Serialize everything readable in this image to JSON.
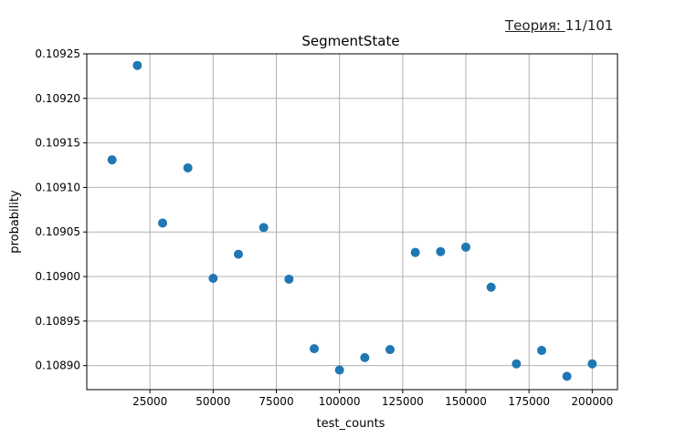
{
  "theory_link": {
    "label": "Теория: ",
    "value": "11/101"
  },
  "chart_data": {
    "type": "scatter",
    "title": "SegmentState",
    "xlabel": "test_counts",
    "ylabel": "probability",
    "xlim": [
      0,
      210000
    ],
    "ylim": [
      0.108873,
      0.10925
    ],
    "grid": true,
    "x_ticks": [
      25000,
      50000,
      75000,
      100000,
      125000,
      150000,
      175000,
      200000
    ],
    "y_ticks": [
      0.1089,
      0.10895,
      0.109,
      0.10905,
      0.1091,
      0.10915,
      0.1092,
      0.10925
    ],
    "y_tick_labels": [
      "0.10890",
      "0.10895",
      "0.10900",
      "0.10905",
      "0.10910",
      "0.10915",
      "0.10920",
      "0.10925"
    ],
    "marker_color": "#1f77b4",
    "series": [
      {
        "x": [
          10000,
          20000,
          30000,
          40000,
          50000,
          60000,
          70000,
          80000,
          90000,
          100000,
          110000,
          120000,
          130000,
          140000,
          150000,
          160000,
          170000,
          180000,
          190000,
          200000
        ],
        "y": [
          0.109131,
          0.109237,
          0.10906,
          0.109122,
          0.108998,
          0.109025,
          0.109055,
          0.108997,
          0.108919,
          0.108895,
          0.108909,
          0.108918,
          0.109027,
          0.109028,
          0.109033,
          0.108988,
          0.108902,
          0.108917,
          0.108888,
          0.108902
        ]
      }
    ]
  }
}
